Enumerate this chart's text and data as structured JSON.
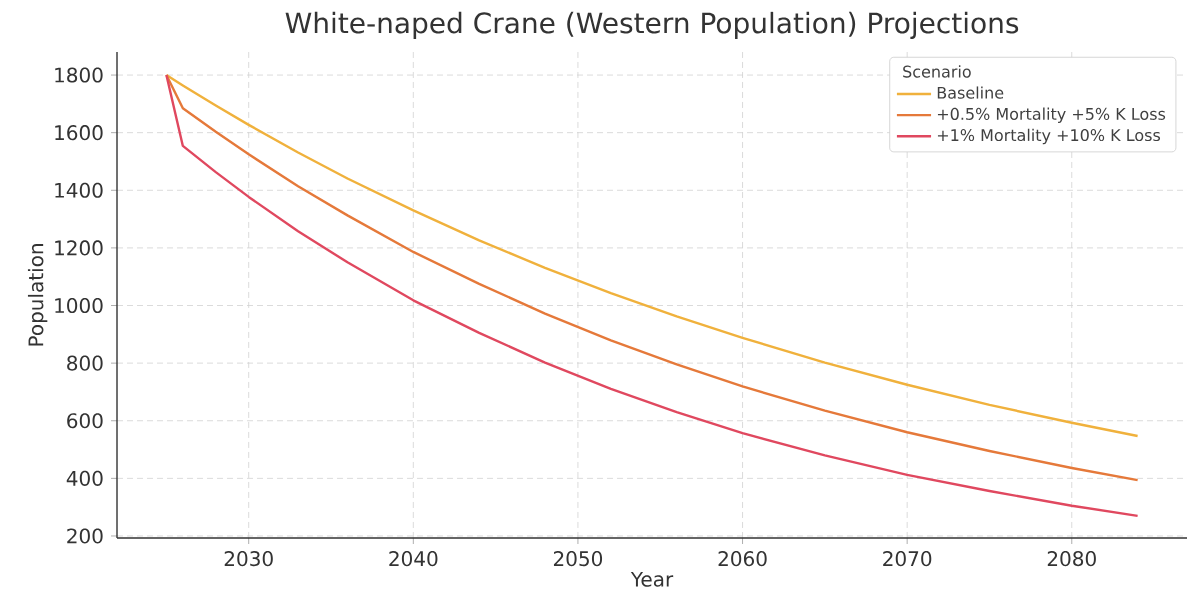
{
  "chart_data": {
    "type": "line",
    "title": "White-naped Crane (Western Population) Projections",
    "xlabel": "Year",
    "ylabel": "Population",
    "legend_title": "Scenario",
    "x": [
      2025,
      2026,
      2028,
      2030,
      2033,
      2036,
      2040,
      2044,
      2048,
      2052,
      2056,
      2060,
      2065,
      2070,
      2075,
      2080,
      2084
    ],
    "series": [
      {
        "name": "Baseline",
        "color": "#f0b13c",
        "values": [
          1800,
          1764,
          1694,
          1627,
          1531,
          1441,
          1330,
          1226,
          1131,
          1043,
          962,
          888,
          802,
          725,
          655,
          593,
          547
        ]
      },
      {
        "name": "+0.5% Mortality +5% K Loss",
        "color": "#e5793a",
        "values": [
          1800,
          1685,
          1603,
          1525,
          1414,
          1313,
          1186,
          1075,
          972,
          879,
          796,
          719,
          635,
          560,
          495,
          436,
          394
        ]
      },
      {
        "name": "+1% Mortality +10% K Loss",
        "color": "#e0485f",
        "values": [
          1800,
          1554,
          1463,
          1377,
          1258,
          1150,
          1018,
          905,
          802,
          711,
          630,
          557,
          480,
          412,
          356,
          305,
          270
        ]
      }
    ],
    "xlim": [
      2022,
      2087
    ],
    "xticks": [
      2030,
      2040,
      2050,
      2060,
      2070,
      2080
    ],
    "ylim": [
      193,
      1880
    ],
    "yticks": [
      200,
      400,
      600,
      800,
      1000,
      1200,
      1400,
      1600,
      1800
    ],
    "grid": true,
    "legend": "top right",
    "line_style": "solid",
    "marker": "none"
  }
}
